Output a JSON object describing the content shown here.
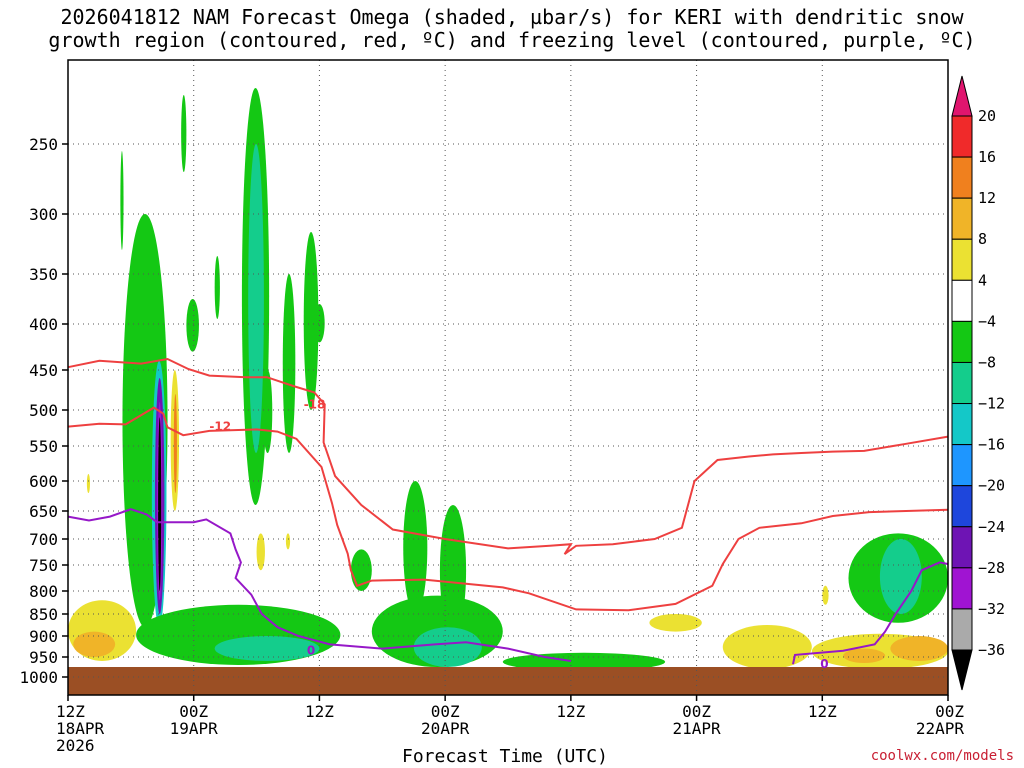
{
  "title_line1": "2026041812 NAM Forecast Omega (shaded, µbar/s) for KERI with dendritic snow",
  "title_line2": "growth region (contoured, red, ºC) and freezing level (contoured, purple, ºC)",
  "credit": "coolwx.com/models",
  "chart_data": {
    "type": "heatmap",
    "title": "2026041812 NAM Forecast Omega (shaded, µbar/s) for KERI with dendritic snow growth region (contoured, red, ºC) and freezing level (contoured, purple, ºC)",
    "xlabel": "Forecast Time (UTC)",
    "ylabel": "",
    "x_range_hours": [
      0,
      84
    ],
    "y_range_hPa": [
      200,
      1000
    ],
    "y_ticks": [
      250,
      300,
      350,
      400,
      450,
      500,
      550,
      600,
      650,
      700,
      750,
      800,
      850,
      900,
      950,
      1000
    ],
    "x_ticks": [
      {
        "hour": 0,
        "lines": [
          "12Z",
          "18APR",
          "2026"
        ]
      },
      {
        "hour": 12,
        "lines": [
          "00Z",
          "19APR"
        ]
      },
      {
        "hour": 24,
        "lines": [
          "12Z"
        ]
      },
      {
        "hour": 36,
        "lines": [
          "00Z",
          "20APR"
        ]
      },
      {
        "hour": 48,
        "lines": [
          "12Z"
        ]
      },
      {
        "hour": 60,
        "lines": [
          "00Z",
          "21APR"
        ]
      },
      {
        "hour": 72,
        "lines": [
          "12Z"
        ]
      },
      {
        "hour": 84,
        "lines": [
          "00Z",
          "22APR"
        ]
      }
    ],
    "colorbar": {
      "labels": [
        "20",
        "16",
        "12",
        "8",
        "4",
        "−4",
        "−8",
        "−12",
        "−16",
        "−20",
        "−24",
        "−28",
        "−32",
        "−36"
      ],
      "colors": [
        "#e0156e",
        "#f02a2a",
        "#f0801e",
        "#f0b428",
        "#ebe132",
        "#ffffff",
        "#14c814",
        "#14cd8c",
        "#14c8c8",
        "#1e96ff",
        "#1e46dc",
        "#6e14b4",
        "#a014d2",
        "#aaaaaa",
        "#000000"
      ]
    },
    "regions": [
      {
        "h0": 5.0,
        "h1": 5.3,
        "p0": 255,
        "p1": 330,
        "v": -6
      },
      {
        "h0": 5.2,
        "h1": 9.5,
        "p0": 300,
        "p1": 880,
        "v": -6
      },
      {
        "h0": 8.0,
        "h1": 9.4,
        "p0": 440,
        "p1": 880,
        "v": -14
      },
      {
        "h0": 8.3,
        "h1": 9.2,
        "p0": 460,
        "p1": 850,
        "v": -26
      },
      {
        "h0": 8.5,
        "h1": 9.0,
        "p0": 490,
        "p1": 820,
        "v": -30
      },
      {
        "h0": 8.6,
        "h1": 8.9,
        "p0": 510,
        "p1": 800,
        "v": -40
      },
      {
        "h0": 9.8,
        "h1": 10.6,
        "p0": 450,
        "p1": 650,
        "v": 6
      },
      {
        "h0": 10.1,
        "h1": 10.4,
        "p0": 480,
        "p1": 620,
        "v": 12
      },
      {
        "h0": 1.8,
        "h1": 2.1,
        "p0": 590,
        "p1": 620,
        "v": 6
      },
      {
        "h0": 10.8,
        "h1": 11.3,
        "p0": 215,
        "p1": 270,
        "v": -6
      },
      {
        "h0": 11.3,
        "h1": 12.5,
        "p0": 375,
        "p1": 430,
        "v": -6
      },
      {
        "h0": 14.0,
        "h1": 14.5,
        "p0": 335,
        "p1": 395,
        "v": -6
      },
      {
        "h0": 16.6,
        "h1": 19.2,
        "p0": 210,
        "p1": 640,
        "v": -6
      },
      {
        "h0": 17.2,
        "h1": 18.7,
        "p0": 250,
        "p1": 560,
        "v": -10
      },
      {
        "h0": 18.6,
        "h1": 19.5,
        "p0": 450,
        "p1": 560,
        "v": -6
      },
      {
        "h0": 20.5,
        "h1": 21.7,
        "p0": 350,
        "p1": 560,
        "v": -6
      },
      {
        "h0": 22.5,
        "h1": 23.9,
        "p0": 315,
        "p1": 500,
        "v": -6
      },
      {
        "h0": 23.5,
        "h1": 24.5,
        "p0": 380,
        "p1": 420,
        "v": -6
      },
      {
        "h0": 18.0,
        "h1": 18.8,
        "p0": 690,
        "p1": 760,
        "v": 6
      },
      {
        "h0": 20.8,
        "h1": 21.2,
        "p0": 690,
        "p1": 720,
        "v": 6
      },
      {
        "h0": 6.5,
        "h1": 26.0,
        "p0": 830,
        "p1": 970,
        "v": -6
      },
      {
        "h0": 14.0,
        "h1": 24.0,
        "p0": 900,
        "p1": 960,
        "v": -10
      },
      {
        "h0": 27.0,
        "h1": 29.0,
        "p0": 720,
        "p1": 800,
        "v": -6
      },
      {
        "h0": 32.0,
        "h1": 34.3,
        "p0": 600,
        "p1": 850,
        "v": -6
      },
      {
        "h0": 35.5,
        "h1": 38.0,
        "p0": 640,
        "p1": 900,
        "v": -6
      },
      {
        "h0": 29.0,
        "h1": 41.5,
        "p0": 810,
        "p1": 975,
        "v": -6
      },
      {
        "h0": 33.0,
        "h1": 39.5,
        "p0": 880,
        "p1": 975,
        "v": -10
      },
      {
        "h0": 41.5,
        "h1": 57.0,
        "p0": 940,
        "p1": 985,
        "v": -6
      },
      {
        "h0": 0.0,
        "h1": 6.5,
        "p0": 820,
        "p1": 960,
        "v": 6
      },
      {
        "h0": 0.5,
        "h1": 4.5,
        "p0": 890,
        "p1": 950,
        "v": 9
      },
      {
        "h0": 55.5,
        "h1": 60.5,
        "p0": 850,
        "p1": 890,
        "v": 6
      },
      {
        "h0": 62.5,
        "h1": 71.0,
        "p0": 875,
        "p1": 980,
        "v": 6
      },
      {
        "h0": 71.0,
        "h1": 84.0,
        "p0": 895,
        "p1": 980,
        "v": 6
      },
      {
        "h0": 74.0,
        "h1": 78.0,
        "p0": 930,
        "p1": 965,
        "v": 9
      },
      {
        "h0": 78.5,
        "h1": 84.0,
        "p0": 900,
        "p1": 960,
        "v": 10
      },
      {
        "h0": 72.0,
        "h1": 72.6,
        "p0": 790,
        "p1": 830,
        "v": 6
      },
      {
        "h0": 74.5,
        "h1": 84.0,
        "p0": 690,
        "p1": 870,
        "v": -6
      },
      {
        "h0": 77.5,
        "h1": 81.5,
        "p0": 700,
        "p1": 850,
        "v": -10
      }
    ],
    "contours": [
      {
        "name": "-18 (upper)",
        "color": "#ee4040",
        "label": "-18",
        "label_at": [
          22.5,
          493
        ],
        "points": [
          [
            0,
            447
          ],
          [
            3,
            440
          ],
          [
            7,
            443
          ],
          [
            9.5,
            438
          ],
          [
            11.5,
            449
          ],
          [
            13.5,
            457
          ],
          [
            17,
            459
          ],
          [
            19,
            459
          ],
          [
            21.5,
            470
          ],
          [
            23.5,
            478
          ],
          [
            24.5,
            493
          ],
          [
            24.4,
            545
          ],
          [
            25.5,
            593
          ],
          [
            28,
            640
          ],
          [
            31,
            683
          ],
          [
            36,
            700
          ],
          [
            42,
            718
          ],
          [
            46,
            713
          ],
          [
            48,
            710
          ],
          [
            47.4,
            729
          ],
          [
            48.5,
            713
          ],
          [
            52,
            710
          ],
          [
            56,
            700
          ],
          [
            58.6,
            680
          ],
          [
            59.8,
            600
          ],
          [
            62,
            570
          ],
          [
            65,
            565
          ],
          [
            67.3,
            562
          ],
          [
            70,
            560
          ],
          [
            73,
            558
          ],
          [
            76,
            557
          ],
          [
            80,
            547
          ],
          [
            84,
            537
          ]
        ]
      },
      {
        "name": "-12 (lower)",
        "color": "#ee4040",
        "label": "-12",
        "label_at": [
          13.5,
          523
        ],
        "points": [
          [
            0,
            523
          ],
          [
            3,
            519
          ],
          [
            5.5,
            520
          ],
          [
            8.2,
            497
          ],
          [
            9.1,
            505
          ],
          [
            9.5,
            524
          ],
          [
            11,
            535
          ],
          [
            13.5,
            529
          ],
          [
            18,
            527
          ],
          [
            20,
            530
          ],
          [
            21.8,
            540
          ],
          [
            24.2,
            580
          ],
          [
            25.2,
            637
          ],
          [
            25.7,
            675
          ],
          [
            26.7,
            728
          ],
          [
            27,
            760
          ],
          [
            27.6,
            790
          ],
          [
            29,
            780
          ],
          [
            34,
            778
          ],
          [
            41.5,
            793
          ],
          [
            44,
            805
          ],
          [
            48.5,
            840
          ],
          [
            53.5,
            842
          ],
          [
            58,
            828
          ],
          [
            61.5,
            790
          ],
          [
            62.5,
            748
          ],
          [
            64,
            700
          ],
          [
            66,
            680
          ],
          [
            70,
            672
          ],
          [
            73,
            659
          ],
          [
            76.5,
            652
          ],
          [
            80,
            650
          ],
          [
            84,
            648
          ]
        ]
      },
      {
        "name": "0",
        "color": "#9618c8",
        "label": "0",
        "label_at": [
          22.8,
          935
        ],
        "points": [
          [
            0,
            660
          ],
          [
            2,
            667
          ],
          [
            4,
            660
          ],
          [
            6,
            647
          ],
          [
            7.5,
            656
          ],
          [
            8.5,
            670
          ],
          [
            12,
            670
          ],
          [
            13.2,
            665
          ],
          [
            15.5,
            690
          ],
          [
            16,
            720
          ],
          [
            16.5,
            745
          ],
          [
            16,
            775
          ],
          [
            17.5,
            808
          ],
          [
            18.5,
            850
          ],
          [
            20,
            880
          ],
          [
            22,
            900
          ],
          [
            25,
            920
          ],
          [
            30,
            930
          ],
          [
            35,
            920
          ],
          [
            38,
            915
          ],
          [
            42,
            930
          ],
          [
            45.5,
            950
          ],
          [
            48,
            960
          ]
        ]
      },
      {
        "name": "0 (right)",
        "color": "#9618c8",
        "label": "0",
        "label_at": [
          71.8,
          968
        ],
        "points": [
          [
            69.2,
            968
          ],
          [
            69.4,
            945
          ],
          [
            74,
            935
          ],
          [
            77,
            920
          ],
          [
            78,
            890
          ],
          [
            79,
            850
          ],
          [
            80.5,
            800
          ],
          [
            81.5,
            760
          ],
          [
            83.2,
            745
          ],
          [
            84,
            748
          ]
        ]
      }
    ]
  }
}
